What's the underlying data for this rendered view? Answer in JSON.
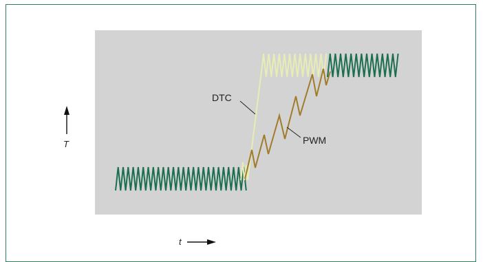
{
  "labels": {
    "dtc": "DTC",
    "pwm": "PWM",
    "y_axis": "T",
    "x_axis": "t"
  },
  "colors": {
    "frame": "#2e7d5e",
    "panel": "#d3d3d3",
    "steady_ripple": "#1b6e4f",
    "dtc_trace": "#e8edb4",
    "pwm_trace": "#a07c2a",
    "arrow": "#111111"
  }
}
